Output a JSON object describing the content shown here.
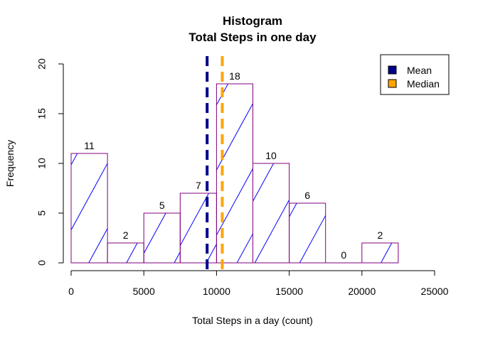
{
  "chart_data": {
    "type": "bar",
    "title": "Histogram",
    "subtitle": "Total Steps in one day",
    "xlabel": "Total Steps in a day (count)",
    "ylabel": "Frequency",
    "xlim": [
      0,
      25000
    ],
    "ylim": [
      0,
      20
    ],
    "x_ticks": [
      0,
      5000,
      10000,
      15000,
      20000,
      25000
    ],
    "y_ticks": [
      0,
      5,
      10,
      15,
      20
    ],
    "bins": [
      {
        "start": 0,
        "end": 2500,
        "count": 11
      },
      {
        "start": 2500,
        "end": 5000,
        "count": 2
      },
      {
        "start": 5000,
        "end": 7500,
        "count": 5
      },
      {
        "start": 7500,
        "end": 10000,
        "count": 7
      },
      {
        "start": 10000,
        "end": 12500,
        "count": 18
      },
      {
        "start": 12500,
        "end": 15000,
        "count": 10
      },
      {
        "start": 15000,
        "end": 17500,
        "count": 6
      },
      {
        "start": 17500,
        "end": 20000,
        "count": 0
      },
      {
        "start": 20000,
        "end": 22500,
        "count": 2
      }
    ],
    "bar_style": {
      "border_color": "#800080",
      "hatch_color": "#0000FF",
      "fill": "none"
    },
    "reference_lines": [
      {
        "name": "Mean",
        "value": 9354,
        "color": "#00008B",
        "style": "dashed"
      },
      {
        "name": "Median",
        "value": 10395,
        "color": "#FFA500",
        "style": "dashed"
      }
    ],
    "legend": {
      "position": "top-right",
      "items": [
        {
          "label": "Mean",
          "color": "#00008B"
        },
        {
          "label": "Median",
          "color": "#FFA500"
        }
      ]
    },
    "grid": false
  }
}
